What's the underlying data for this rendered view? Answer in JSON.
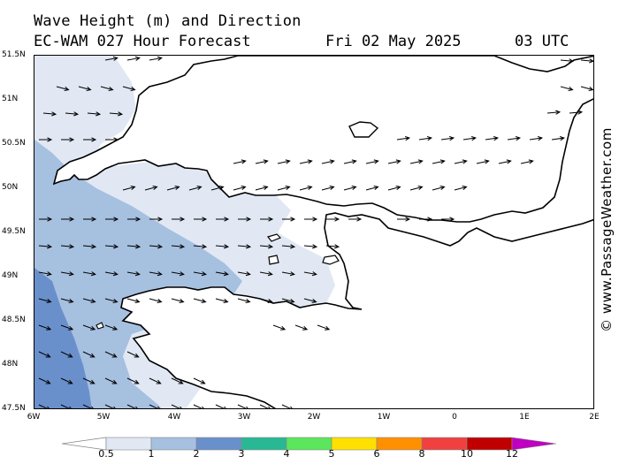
{
  "header": {
    "title": "Wave Height (m) and Direction",
    "model": "EC-WAM 027 Hour Forecast",
    "date": "Fri 02 May 2025",
    "time": "03 UTC"
  },
  "map": {
    "lat_labels": [
      "51.5N",
      "51N",
      "50.5N",
      "50N",
      "49.5N",
      "49N",
      "48.5N",
      "48N",
      "47.5N"
    ],
    "lon_labels": [
      "6W",
      "5W",
      "4W",
      "3W",
      "2W",
      "1W",
      "0",
      "1E",
      "2E"
    ],
    "lat_range": [
      47.5,
      51.5
    ],
    "lon_range": [
      -6,
      2
    ],
    "region": "English Channel / Celtic Sea / Brittany",
    "colors": {
      "land": "#ffffff",
      "coastline": "#000000",
      "band_0_5_1": "#e1e8f4",
      "band_1_2": "#a6c0e0",
      "band_2_3": "#6a90cc"
    }
  },
  "credit": "© www.PassageWeather.com",
  "legend": {
    "labels": [
      "0.5",
      "1",
      "2",
      "3",
      "4",
      "5",
      "6",
      "8",
      "10",
      "12"
    ],
    "colors": [
      "#e1e8f4",
      "#a6c0e0",
      "#6a90cc",
      "#28b894",
      "#5ce65c",
      "#ffe000",
      "#ff9000",
      "#f04040",
      "#c00000",
      "#c000c0"
    ]
  }
}
